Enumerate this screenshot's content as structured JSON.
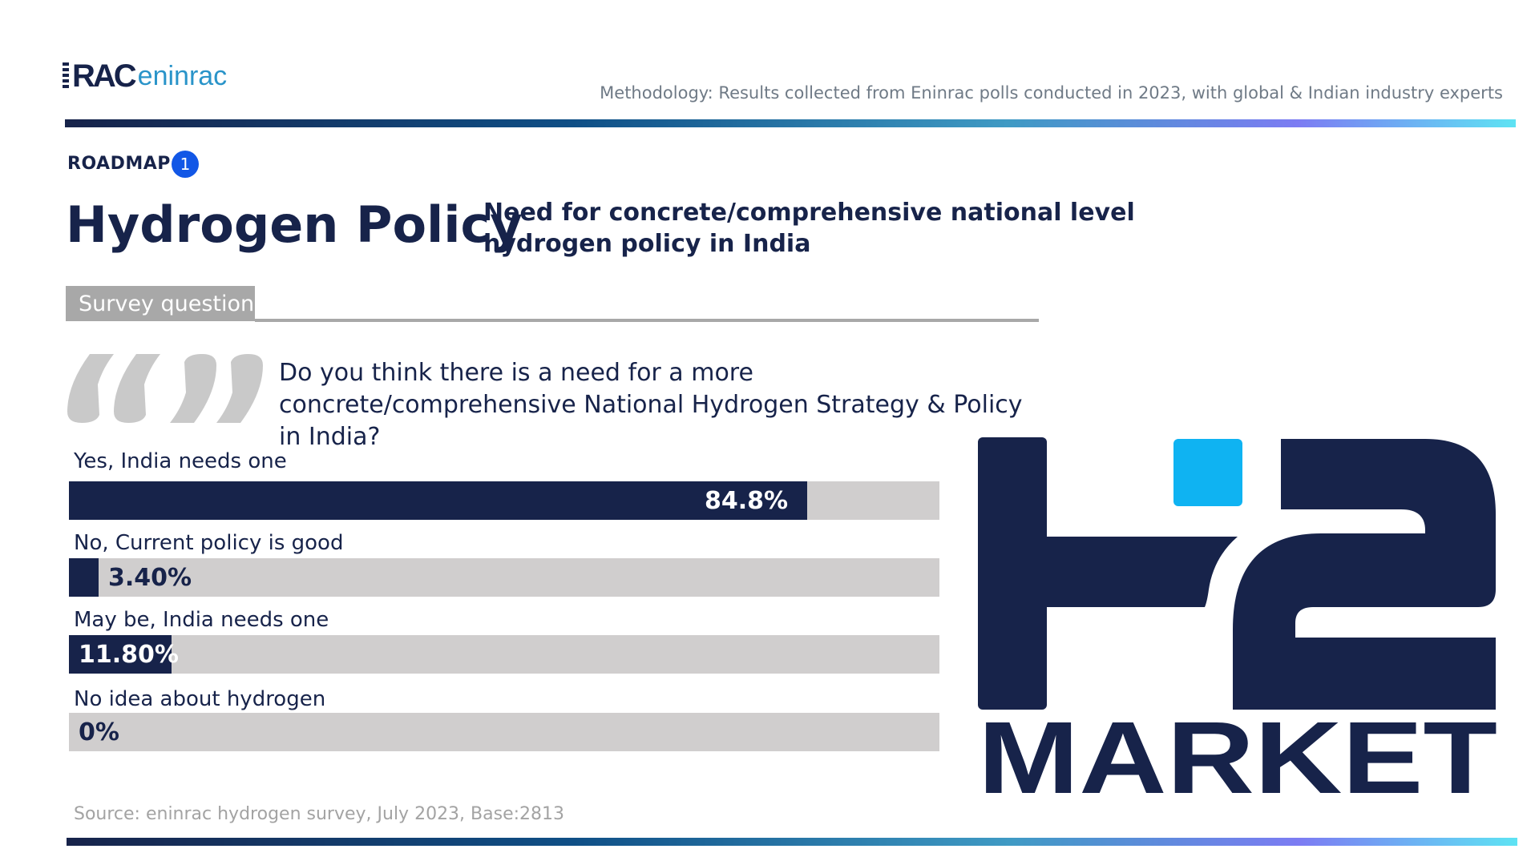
{
  "logo": {
    "brand_rac": "RA",
    "brand_c": "C",
    "brand_name": "eninrac"
  },
  "methodology": "Methodology: Results collected from Eninrac polls conducted in 2023, with global & Indian industry experts",
  "section": {
    "label": "ROADMAP",
    "number": "1"
  },
  "title": "Hydrogen Policy",
  "subtitle": "Need for concrete/comprehensive national level hydrogen policy in India",
  "survey_tab": "Survey question",
  "question": "Do you think there is a need for a more concrete/comprehensive National Hydrogen Strategy & Policy in India?",
  "source": "Source: eninrac hydrogen survey, July 2023, Base:2813",
  "h2_logo": {
    "word": "MARKET"
  },
  "colors": {
    "navy": "#17234a",
    "track": "#d0cece",
    "accent_blue": "#1257e6",
    "h2_dot": "#0fb3f2"
  },
  "chart_data": {
    "type": "bar",
    "orientation": "horizontal",
    "categories": [
      "Yes, India needs one",
      "No, Current policy is good",
      "May be, India needs one",
      "No idea about hydrogen"
    ],
    "values": [
      84.8,
      3.4,
      11.8,
      0
    ],
    "data_labels": [
      "84.8%",
      "3.40%",
      "11.80%",
      "0%"
    ],
    "xlim": [
      0,
      100
    ],
    "grid": false,
    "legend": "none"
  }
}
